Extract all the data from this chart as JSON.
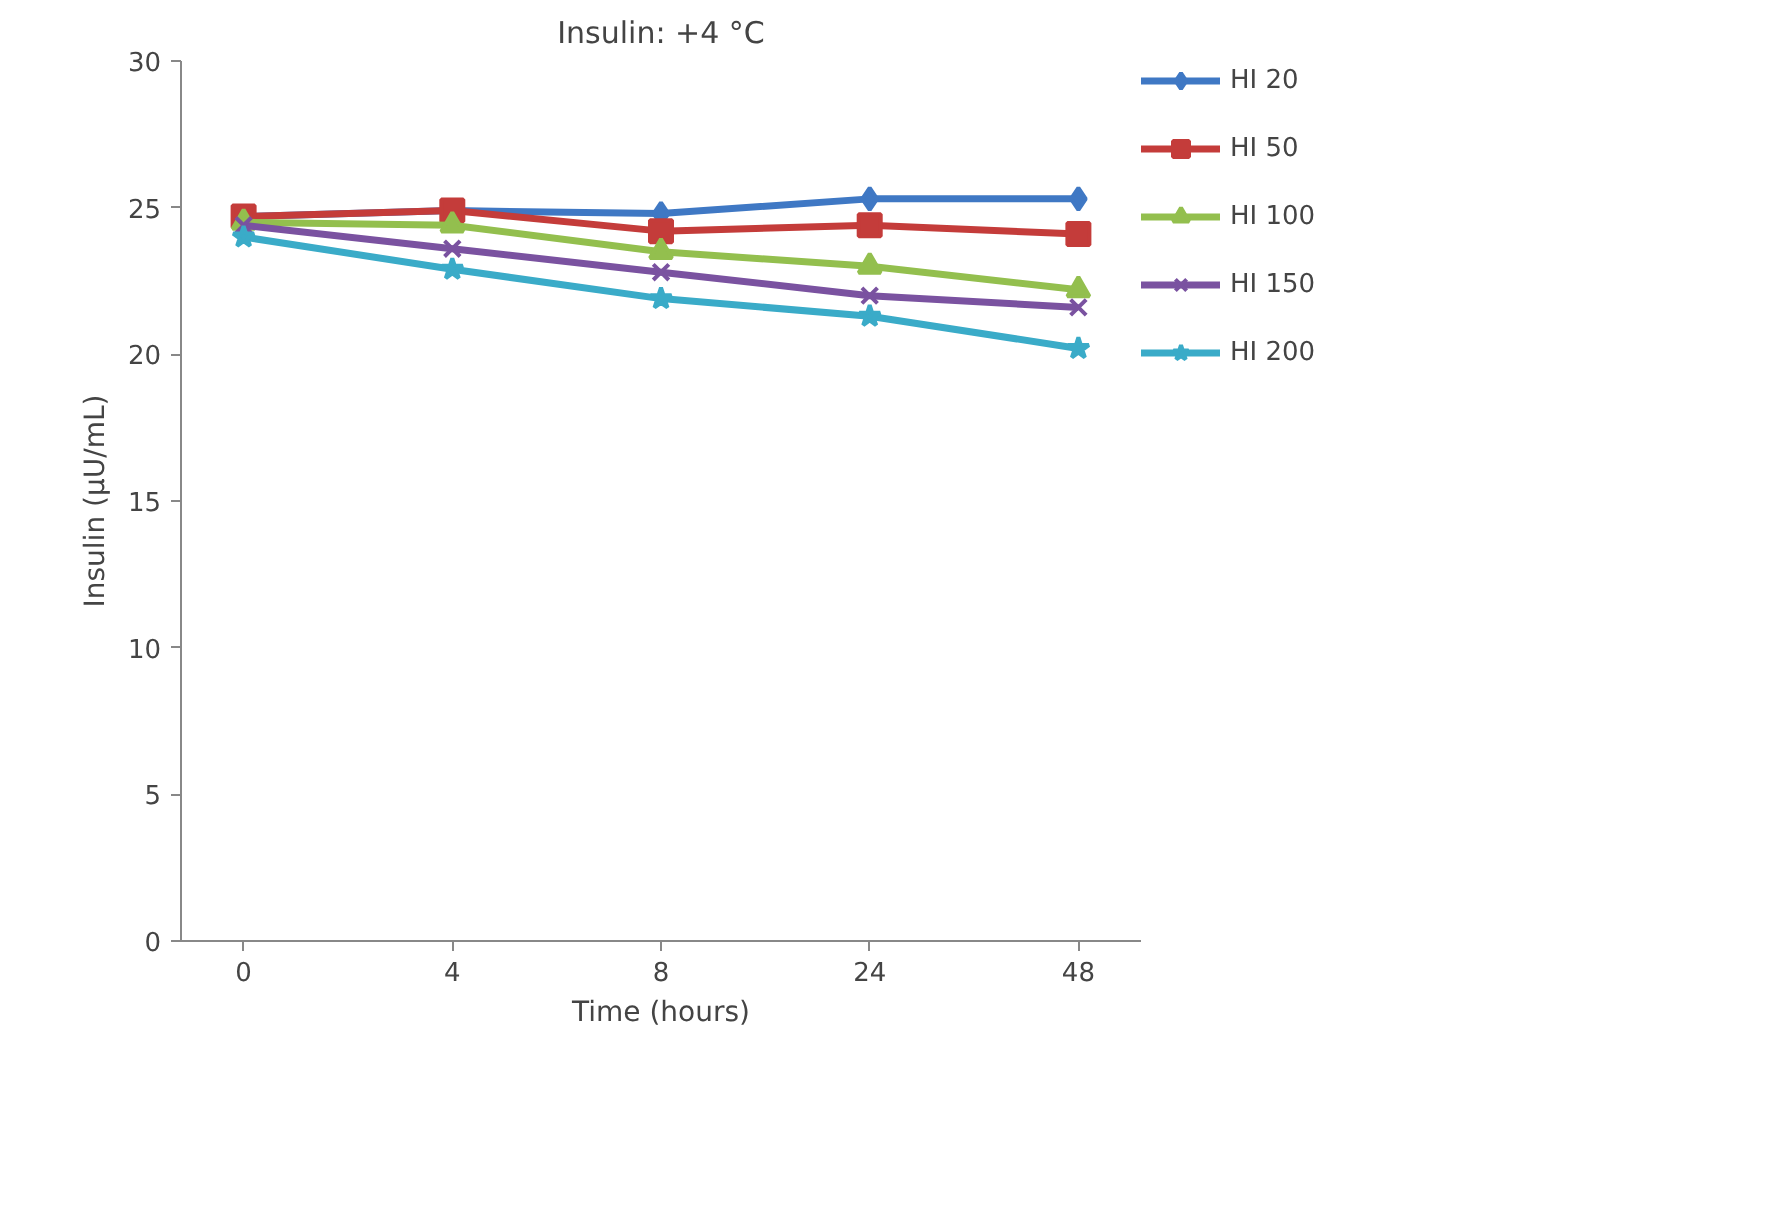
{
  "chart_data": {
    "type": "line",
    "title": "Insulin: +4 °C",
    "xlabel": "Time (hours)",
    "ylabel": "Insulin (µU/mL)",
    "categories": [
      "0",
      "4",
      "8",
      "24",
      "48"
    ],
    "ylim": [
      0,
      30
    ],
    "yticks": [
      0,
      5,
      10,
      15,
      20,
      25,
      30
    ],
    "grid": false,
    "legend": "right",
    "series": [
      {
        "name": "HI 20",
        "color": "#3f78c4",
        "marker": "diamond",
        "values": [
          24.7,
          24.9,
          24.8,
          25.3,
          25.3
        ]
      },
      {
        "name": "HI 50",
        "color": "#c43c3a",
        "marker": "square",
        "values": [
          24.7,
          24.9,
          24.2,
          24.4,
          24.1
        ]
      },
      {
        "name": "HI 100",
        "color": "#93bf4e",
        "marker": "triangle",
        "values": [
          24.5,
          24.4,
          23.5,
          23.0,
          22.2
        ]
      },
      {
        "name": "HI 150",
        "color": "#7a52a0",
        "marker": "cross",
        "values": [
          24.4,
          23.6,
          22.8,
          22.0,
          21.6
        ]
      },
      {
        "name": "HI 200",
        "color": "#3aabc8",
        "marker": "star",
        "values": [
          24.0,
          22.9,
          21.9,
          21.3,
          20.2
        ]
      }
    ]
  }
}
